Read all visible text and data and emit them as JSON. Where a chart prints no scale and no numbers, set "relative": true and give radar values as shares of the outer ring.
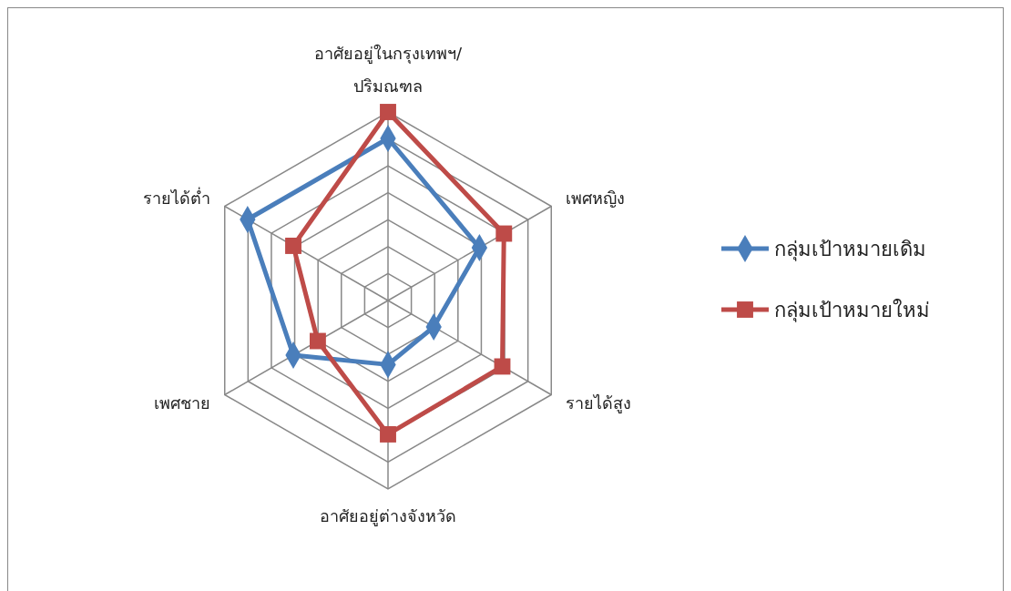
{
  "chart_data": {
    "type": "radar",
    "relative": true,
    "grid": true,
    "legend": "right",
    "categories": [
      "อาศัยอยู่ในกรุงเทพฯ/ปริมณฑล",
      "เพศหญิง",
      "รายได้สูง",
      "อาศัยอยู่ต่างจังหวัด",
      "เพศชาย",
      "รายได้ต่ำ"
    ],
    "series": [
      {
        "name": "กลุ่มเป้าหมายเดิม",
        "color": "#4a7ebb",
        "marker": "diamond",
        "values": [
          0.86,
          0.56,
          0.28,
          0.34,
          0.58,
          0.86
        ]
      },
      {
        "name": "กลุ่มเป้าหมายใหม่",
        "color": "#be4b48",
        "marker": "square",
        "values": [
          1,
          0.71,
          0.7,
          0.71,
          0.43,
          0.58
        ]
      }
    ]
  }
}
